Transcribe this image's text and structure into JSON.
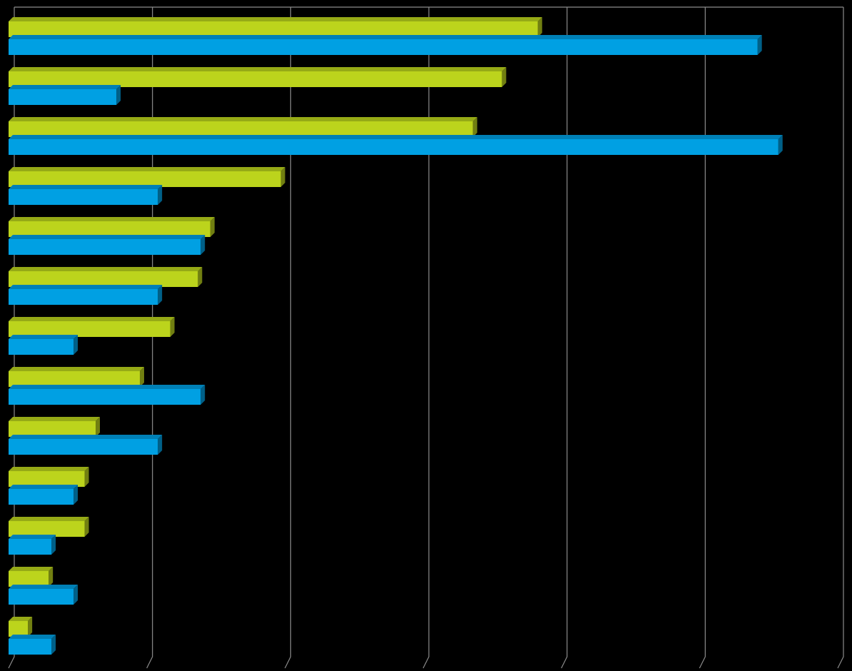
{
  "chart_data": {
    "type": "bar",
    "orientation": "horizontal",
    "three_d": true,
    "categories": [
      null,
      null,
      null,
      null,
      null,
      null,
      null,
      null,
      null,
      null,
      null,
      null,
      null
    ],
    "series": [
      {
        "color": "#bcd41c",
        "values": [
          3.83,
          3.57,
          3.36,
          1.97,
          1.46,
          1.37,
          1.17,
          0.95,
          0.63,
          0.55,
          0.55,
          0.29,
          0.14
        ]
      },
      {
        "color": "#00a0e3",
        "values": [
          5.42,
          0.78,
          5.57,
          1.08,
          1.39,
          1.08,
          0.47,
          1.39,
          1.08,
          0.47,
          0.31,
          0.47,
          0.31
        ]
      }
    ],
    "xlim": [
      0,
      6
    ],
    "xticks": [
      0,
      1,
      2,
      3,
      4,
      5,
      6
    ],
    "grid": true,
    "background": "#000000"
  }
}
